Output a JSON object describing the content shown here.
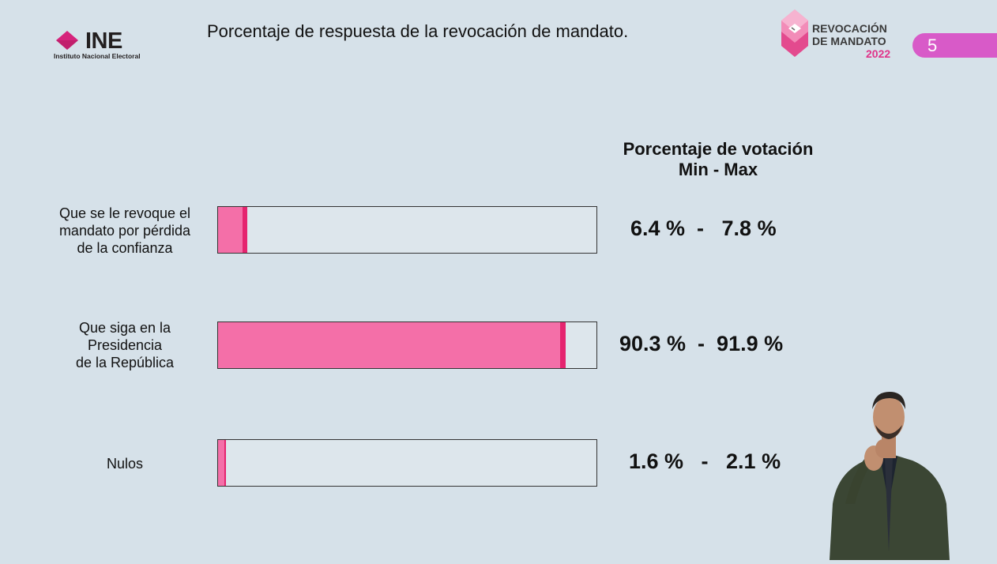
{
  "header": {
    "title": "Porcentaje de respuesta de la revocación de mandato.",
    "ine_logo": {
      "name": "INE",
      "subtitle": "Instituto Nacional Electoral"
    },
    "event_logo": {
      "line1": "REVOCACIÓN",
      "line2": "DE MANDATO",
      "year": "2022"
    },
    "page_number": "5"
  },
  "colors": {
    "background": "#d6e1e9",
    "bar_min": "#f46fa8",
    "bar_max": "#e5246f",
    "accent": "#d85ac8"
  },
  "chart_data": {
    "type": "bar",
    "orientation": "horizontal",
    "title": "Porcentaje de respuesta de la revocación de mandato.",
    "column_header": [
      "Porcentaje de votación",
      "Min - Max"
    ],
    "categories": [
      [
        "Que se le revoque el",
        "mandato por pérdida",
        "de la confianza"
      ],
      [
        "Que siga en la",
        "Presidencia",
        "de la República"
      ],
      [
        "Nulos"
      ]
    ],
    "series": [
      {
        "values": [
          6.4,
          90.3,
          1.6
        ]
      },
      {
        "values": [
          7.8,
          91.9,
          2.1
        ]
      }
    ],
    "range_labels": [
      "6.4 %  -   7.8 %",
      "90.3 %  -  91.9 %",
      "1.6 %   -   2.1 %"
    ],
    "xlim": [
      0,
      100
    ],
    "grid": false,
    "legend": "none"
  }
}
